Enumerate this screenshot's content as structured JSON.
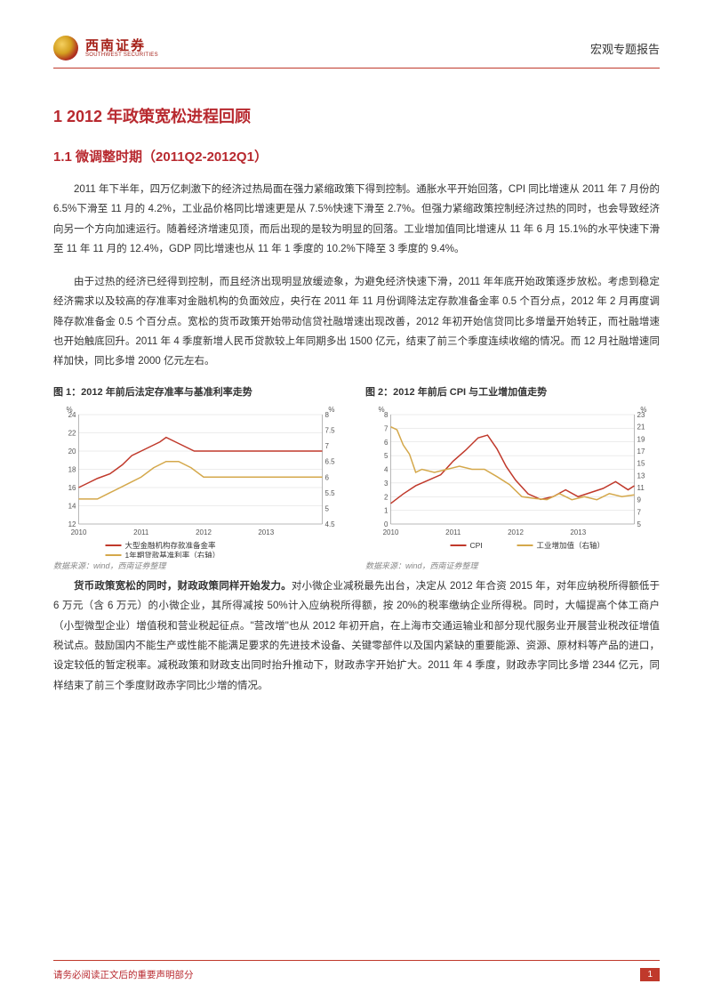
{
  "header": {
    "logo_cn": "西南证券",
    "logo_en": "SOUTHWEST SECURITIES",
    "doc_type": "宏观专题报告"
  },
  "h1": "1 2012 年政策宽松进程回顾",
  "h2": "1.1 微调整时期（2011Q2-2012Q1）",
  "para1": "2011 年下半年，四万亿刺激下的经济过热局面在强力紧缩政策下得到控制。通胀水平开始回落，CPI 同比增速从 2011 年 7 月份的 6.5%下滑至 11 月的 4.2%，工业品价格同比增速更是从 7.5%快速下滑至 2.7%。但强力紧缩政策控制经济过热的同时，也会导致经济向另一个方向加速运行。随着经济增速见顶，而后出现的是较为明显的回落。工业增加值同比增速从 11 年 6 月 15.1%的水平快速下滑至 11 年 11 月的 12.4%，GDP 同比增速也从 11 年 1 季度的 10.2%下降至 3 季度的 9.4%。",
  "para2": "由于过热的经济已经得到控制，而且经济出现明显放缓迹象，为避免经济快速下滑，2011 年年底开始政策逐步放松。考虑到稳定经济需求以及较高的存准率对金融机构的负面效应，央行在 2011 年 11 月份调降法定存款准备金率 0.5 个百分点，2012 年 2 月再度调降存款准备金 0.5 个百分点。宽松的货币政策开始带动信贷社融增速出现改善，2012 年初开始信贷同比多增量开始转正，而社融增速也开始触底回升。2011 年 4 季度新增人民币贷款较上年同期多出 1500 亿元，结束了前三个季度连续收缩的情况。而 12 月社融增速同样加快，同比多增 2000 亿元左右。",
  "para3_lead": "货币政策宽松的同时，财政政策同样开始发力。",
  "para3_body": "对小微企业减税最先出台，决定从 2012 年合资 2015 年，对年应纳税所得额低于 6 万元（含 6 万元）的小微企业，其所得减按 50%计入应纳税所得额，按 20%的税率缴纳企业所得税。同时，大幅提高个体工商户（小型微型企业）增值税和营业税起征点。\"营改增\"也从 2012 年初开启，在上海市交通运输业和部分现代服务业开展营业税改征增值税试点。鼓励国内不能生产或性能不能满足要求的先进技术设备、关键零部件以及国内紧缺的重要能源、资源、原材料等产品的进口，设定较低的暂定税率。减税政策和财政支出同时抬升推动下，财政赤字开始扩大。2011 年 4 季度，财政赤字同比多增 2344 亿元，同样结束了前三个季度财政赤字同比少增的情况。",
  "chart1": {
    "title": "图 1：2012 年前后法定存准率与基准利率走势",
    "type": "line-dual-axis",
    "source": "数据来源：wind，西南证券整理",
    "x_labels": [
      "2010",
      "2011",
      "2012",
      "2013"
    ],
    "left_axis": {
      "label": "%",
      "min": 12,
      "max": 24,
      "ticks": [
        12,
        14,
        16,
        18,
        20,
        22,
        24
      ]
    },
    "right_axis": {
      "label": "%",
      "min": 4.5,
      "max": 8.0,
      "ticks": [
        4.5,
        5.0,
        5.5,
        6.0,
        6.5,
        7.0,
        7.5,
        8.0
      ]
    },
    "series": [
      {
        "name": "大型金融机构存款准备金率",
        "color": "#c0392b",
        "axis": "left",
        "points": [
          [
            0,
            16.0
          ],
          [
            0.15,
            16.5
          ],
          [
            0.3,
            17.0
          ],
          [
            0.5,
            17.5
          ],
          [
            0.7,
            18.5
          ],
          [
            0.85,
            19.5
          ],
          [
            1.0,
            20.0
          ],
          [
            1.15,
            20.5
          ],
          [
            1.3,
            21.0
          ],
          [
            1.4,
            21.5
          ],
          [
            1.55,
            21.0
          ],
          [
            1.7,
            20.5
          ],
          [
            1.85,
            20.0
          ],
          [
            2.0,
            20.0
          ],
          [
            2.5,
            20.0
          ],
          [
            3.0,
            20.0
          ],
          [
            3.5,
            20.0
          ],
          [
            3.9,
            20.0
          ]
        ]
      },
      {
        "name": "1年期贷款基准利率（右轴）",
        "color": "#d4a84b",
        "axis": "right",
        "points": [
          [
            0,
            5.3
          ],
          [
            0.3,
            5.3
          ],
          [
            0.5,
            5.5
          ],
          [
            0.8,
            5.8
          ],
          [
            1.0,
            6.0
          ],
          [
            1.2,
            6.3
          ],
          [
            1.4,
            6.5
          ],
          [
            1.6,
            6.5
          ],
          [
            1.8,
            6.3
          ],
          [
            2.0,
            6.0
          ],
          [
            2.2,
            6.0
          ],
          [
            2.5,
            6.0
          ],
          [
            3.0,
            6.0
          ],
          [
            3.5,
            6.0
          ],
          [
            3.9,
            6.0
          ]
        ]
      }
    ],
    "legend": [
      {
        "label": "大型金融机构存款准备金率",
        "color": "#c0392b"
      },
      {
        "label": "1年期贷款基准利率（右轴）",
        "color": "#d4a84b"
      }
    ],
    "grid_color": "#d8d8d8",
    "bg": "#ffffff",
    "fontsize_axis": 8,
    "fontsize_legend": 8.5,
    "line_width": 1.5
  },
  "chart2": {
    "title": "图 2：2012 年前后 CPI 与工业增加值走势",
    "type": "line-dual-axis",
    "source": "数据来源：wind，西南证券整理",
    "x_labels": [
      "2010",
      "2011",
      "2012",
      "2013"
    ],
    "left_axis": {
      "label": "%",
      "min": 0,
      "max": 8,
      "ticks": [
        0,
        1,
        2,
        3,
        4,
        5,
        6,
        7,
        8
      ]
    },
    "right_axis": {
      "label": "%",
      "min": 5,
      "max": 23,
      "ticks": [
        5,
        7,
        9,
        11,
        13,
        15,
        17,
        19,
        21,
        23
      ]
    },
    "series": [
      {
        "name": "CPI",
        "color": "#c0392b",
        "axis": "left",
        "points": [
          [
            0,
            1.5
          ],
          [
            0.2,
            2.2
          ],
          [
            0.4,
            2.8
          ],
          [
            0.6,
            3.2
          ],
          [
            0.8,
            3.6
          ],
          [
            1.0,
            4.6
          ],
          [
            1.2,
            5.4
          ],
          [
            1.4,
            6.3
          ],
          [
            1.55,
            6.5
          ],
          [
            1.7,
            5.5
          ],
          [
            1.85,
            4.2
          ],
          [
            2.0,
            3.2
          ],
          [
            2.2,
            2.2
          ],
          [
            2.4,
            1.8
          ],
          [
            2.6,
            2.0
          ],
          [
            2.8,
            2.5
          ],
          [
            3.0,
            2.0
          ],
          [
            3.2,
            2.3
          ],
          [
            3.4,
            2.6
          ],
          [
            3.6,
            3.1
          ],
          [
            3.8,
            2.5
          ],
          [
            3.9,
            2.8
          ]
        ]
      },
      {
        "name": "工业增加值（右轴）",
        "color": "#d4a84b",
        "axis": "right",
        "points": [
          [
            0,
            21.0
          ],
          [
            0.1,
            20.5
          ],
          [
            0.2,
            18.0
          ],
          [
            0.3,
            16.5
          ],
          [
            0.4,
            13.5
          ],
          [
            0.5,
            14.0
          ],
          [
            0.7,
            13.5
          ],
          [
            0.9,
            14.0
          ],
          [
            1.1,
            14.5
          ],
          [
            1.3,
            14.0
          ],
          [
            1.5,
            14.0
          ],
          [
            1.7,
            12.8
          ],
          [
            1.9,
            11.5
          ],
          [
            2.1,
            9.5
          ],
          [
            2.3,
            9.2
          ],
          [
            2.5,
            9.0
          ],
          [
            2.7,
            10.0
          ],
          [
            2.9,
            9.0
          ],
          [
            3.1,
            9.5
          ],
          [
            3.3,
            9.0
          ],
          [
            3.5,
            10.0
          ],
          [
            3.7,
            9.5
          ],
          [
            3.9,
            9.8
          ]
        ]
      }
    ],
    "legend": [
      {
        "label": "CPI",
        "color": "#c0392b"
      },
      {
        "label": "工业增加值（右轴）",
        "color": "#d4a84b"
      }
    ],
    "grid_color": "#d8d8d8",
    "bg": "#ffffff",
    "fontsize_axis": 8,
    "fontsize_legend": 8.5,
    "line_width": 1.5
  },
  "footer": {
    "text": "请务必阅读正文后的重要声明部分",
    "page": "1"
  }
}
